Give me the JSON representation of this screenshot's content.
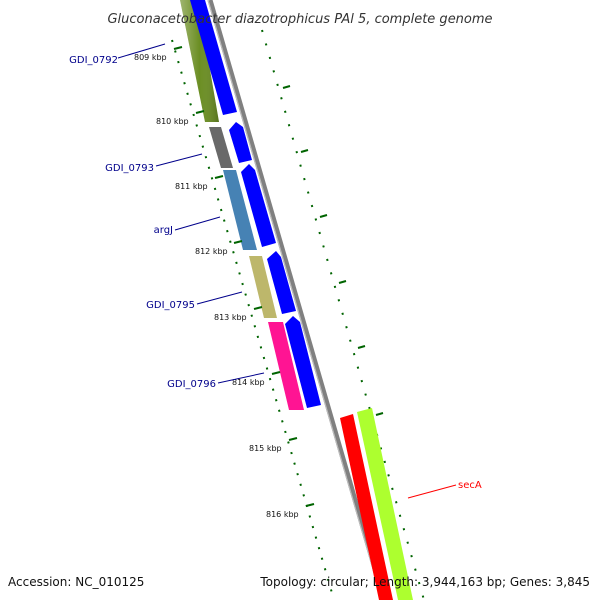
{
  "title": "Gluconacetobacter diazotrophicus PAl 5, complete genome",
  "footer": {
    "accession": "Accession: NC_010125",
    "summary": "Topology: circular; Length: 3,944,163 bp; Genes: 3,845"
  },
  "ticks": [
    {
      "label": "809 kbp"
    },
    {
      "label": "810 kbp"
    },
    {
      "label": "811 kbp"
    },
    {
      "label": "812 kbp"
    },
    {
      "label": "813 kbp"
    },
    {
      "label": "814 kbp"
    },
    {
      "label": "815 kbp"
    },
    {
      "label": "816 kbp"
    }
  ],
  "genes": [
    {
      "label": "GDI_0792",
      "color": "#6b8e23",
      "label_color": "#00008b"
    },
    {
      "label": "GDI_0793",
      "color": "#696969",
      "label_color": "#00008b"
    },
    {
      "label": "argJ",
      "color": "#4682b4",
      "label_color": "#00008b"
    },
    {
      "label": "GDI_0795",
      "color": "#bdb76b",
      "label_color": "#00008b"
    },
    {
      "label": "GDI_0796",
      "color": "#ff1493",
      "label_color": "#00008b"
    },
    {
      "label": "secA",
      "color": "#ff0000",
      "label_color": "#ff0000"
    }
  ],
  "colors": {
    "cds_strand": "#0000ff",
    "secA_cds": "#adff2f",
    "backbone": "#808080",
    "tick_color": "#006400"
  }
}
